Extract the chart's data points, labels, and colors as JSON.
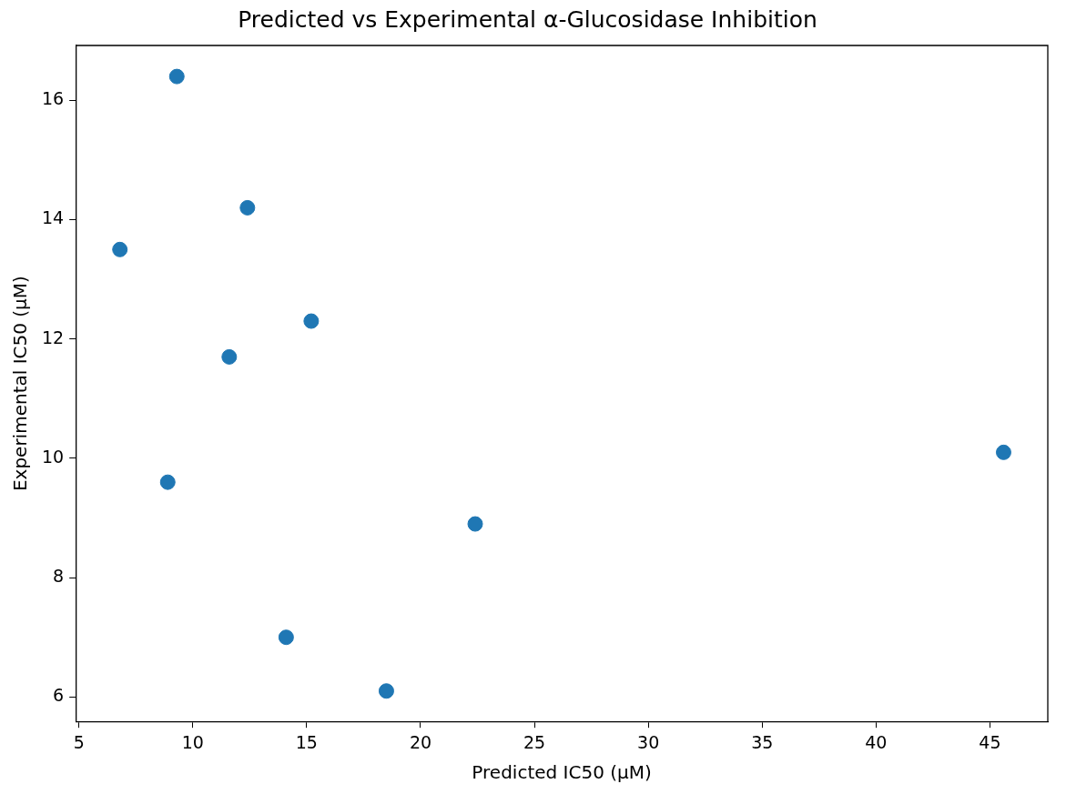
{
  "chart_data": {
    "type": "scatter",
    "title": "Predicted vs Experimental α-Glucosidase Inhibition",
    "xlabel": "Predicted IC50 (µM)",
    "ylabel": "Experimental IC50 (µM)",
    "x": [
      9.3,
      12.4,
      6.8,
      15.2,
      11.6,
      45.6,
      8.9,
      22.4,
      14.1,
      18.5
    ],
    "series": [
      {
        "color": "#1f77b4",
        "values": [
          16.4,
          14.2,
          13.5,
          12.3,
          11.7,
          10.1,
          9.6,
          8.9,
          7.0,
          6.1
        ]
      }
    ],
    "xlim": [
      4.86,
      47.54
    ],
    "xticks": [
      5,
      10,
      15,
      20,
      25,
      30,
      35,
      40,
      45
    ],
    "ylim": [
      5.59,
      16.92
    ],
    "yticks": [
      6,
      8,
      10,
      12,
      14,
      16
    ],
    "grid": false,
    "legend": false,
    "marker": "circle"
  }
}
